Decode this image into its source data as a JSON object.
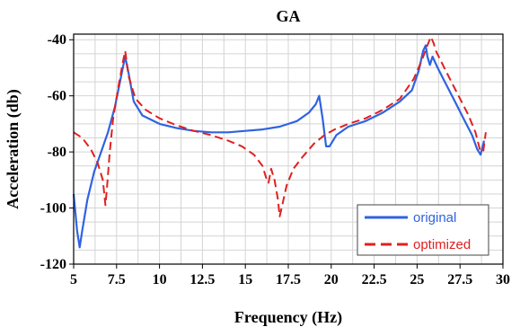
{
  "chart_data": {
    "type": "line",
    "title": "GA",
    "xlabel": "Frequency (Hz)",
    "ylabel": "Acceleration (db)",
    "xlim": [
      5,
      30
    ],
    "ylim": [
      -120,
      -38
    ],
    "xticks": [
      "5",
      "7.5",
      "10",
      "12.5",
      "15",
      "17.5",
      "20",
      "22.5",
      "25",
      "27.5",
      "30"
    ],
    "yticks": [
      "-40",
      "-60",
      "-80",
      "-100",
      "-120"
    ],
    "grid": true,
    "legend_position": "bottom-right",
    "series": [
      {
        "name": "original",
        "color": "#2f63e0",
        "dash": "solid",
        "x": [
          5,
          5.2,
          5.35,
          5.5,
          5.8,
          6.2,
          6.6,
          7.0,
          7.4,
          7.7,
          7.9,
          8.0,
          8.2,
          8.5,
          9.0,
          10.0,
          11.0,
          12.0,
          13.0,
          14.0,
          15.0,
          16.0,
          17.0,
          18.0,
          18.7,
          19.1,
          19.3,
          19.5,
          19.7,
          19.9,
          20.3,
          21.0,
          22.0,
          23.0,
          24.0,
          24.7,
          25.1,
          25.35,
          25.5,
          25.6,
          25.75,
          25.9,
          26.2,
          26.7,
          27.2,
          27.7,
          28.2,
          28.5,
          28.7,
          28.9
        ],
        "y": [
          -95,
          -108,
          -114,
          -108,
          -97,
          -87,
          -80,
          -73,
          -64,
          -55,
          -49,
          -46,
          -52,
          -62,
          -67,
          -70,
          -71.5,
          -72.5,
          -73,
          -73,
          -72.5,
          -72,
          -71,
          -69,
          -66,
          -63,
          -60,
          -68,
          -78,
          -78,
          -74,
          -71,
          -69,
          -66,
          -62,
          -58,
          -51,
          -44,
          -42,
          -46,
          -49,
          -46,
          -50,
          -56,
          -62,
          -68,
          -74,
          -79,
          -81,
          -76
        ]
      },
      {
        "name": "optimized",
        "color": "#e02020",
        "dash": "dashed",
        "x": [
          5,
          5.5,
          6.0,
          6.4,
          6.7,
          6.85,
          6.95,
          7.1,
          7.3,
          7.6,
          7.9,
          8.0,
          8.2,
          8.6,
          9.2,
          10.0,
          11.0,
          12.0,
          13.0,
          14.0,
          14.8,
          15.5,
          16.0,
          16.2,
          16.35,
          16.5,
          16.7,
          16.9,
          17.0,
          17.15,
          17.4,
          17.8,
          18.3,
          19.0,
          19.6,
          20.2,
          21.0,
          22.0,
          23.0,
          24.0,
          24.8,
          25.3,
          25.6,
          25.8,
          25.95,
          26.1,
          26.5,
          27.0,
          27.5,
          28.0,
          28.4,
          28.65,
          28.85,
          29.0
        ],
        "y": [
          -73,
          -75,
          -79,
          -84,
          -90,
          -99,
          -92,
          -80,
          -68,
          -57,
          -47,
          -44,
          -53,
          -61,
          -65,
          -68,
          -70.5,
          -72.5,
          -74,
          -76,
          -78,
          -81,
          -85,
          -89,
          -91,
          -86,
          -90,
          -97,
          -103,
          -99,
          -92,
          -86,
          -82,
          -77,
          -74,
          -72,
          -70,
          -68,
          -65,
          -61,
          -54,
          -47,
          -42,
          -39,
          -41,
          -44,
          -49,
          -55,
          -61,
          -67,
          -73,
          -79,
          -80,
          -73
        ]
      }
    ]
  }
}
